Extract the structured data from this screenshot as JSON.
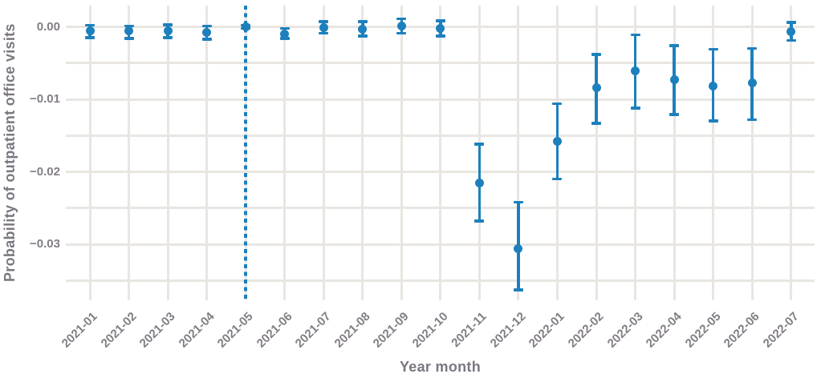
{
  "chart_data": {
    "type": "scatter",
    "subtype": "point-estimates-with-95ci-error-bars",
    "xlabel": "Year month",
    "ylabel": "Probability of outpatient office visits",
    "categories": [
      "2021-01",
      "2021-02",
      "2021-03",
      "2021-04",
      "2021-05",
      "2021-06",
      "2021-07",
      "2021-08",
      "2021-09",
      "2021-10",
      "2021-11",
      "2021-12",
      "2022-01",
      "2022-02",
      "2022-03",
      "2022-04",
      "2022-05",
      "2022-06",
      "2022-07"
    ],
    "series": [
      {
        "name": "estimate",
        "values": [
          -0.0006,
          -0.0006,
          -0.0006,
          -0.0008,
          0.0,
          -0.001,
          -0.0001,
          -0.0003,
          0.0001,
          -0.0002,
          -0.0216,
          -0.0306,
          -0.0158,
          -0.0084,
          -0.0061,
          -0.0073,
          -0.0082,
          -0.0077,
          -0.0007
        ],
        "ci_low": [
          -0.0015,
          -0.0016,
          -0.0015,
          -0.0017,
          -0.0002,
          -0.0016,
          -0.0009,
          -0.0013,
          -0.0009,
          -0.0013,
          -0.0268,
          -0.0363,
          -0.021,
          -0.0133,
          -0.0112,
          -0.0121,
          -0.013,
          -0.0128,
          -0.0019
        ],
        "ci_high": [
          0.0002,
          0.0001,
          0.0003,
          0.0001,
          0.0002,
          -0.0002,
          0.0007,
          0.0007,
          0.0011,
          0.0008,
          -0.0162,
          -0.0242,
          -0.0106,
          -0.0038,
          -0.0011,
          -0.0026,
          -0.0031,
          -0.003,
          0.0006
        ]
      }
    ],
    "reference_line": {
      "x": "2021-05",
      "orientation": "vertical",
      "style": "dashed"
    },
    "ylim": [
      -0.038,
      0.003
    ],
    "grid": true,
    "grid_y_values": [
      0,
      -0.005,
      -0.01,
      -0.015,
      -0.02,
      -0.025,
      -0.03,
      -0.035
    ],
    "yticks": {
      "values": [
        0,
        -0.01,
        -0.02,
        -0.03
      ],
      "labels": [
        "0.00",
        "−0.01",
        "−0.02",
        "−0.03"
      ]
    },
    "legend": "none",
    "colors": {
      "point": "#1d80bd",
      "reference_line": "#1d80bd",
      "grid": "#e9e6e2",
      "tick_text": "#837d85",
      "title_text": "#7c7680",
      "background": "#ffffff"
    }
  }
}
